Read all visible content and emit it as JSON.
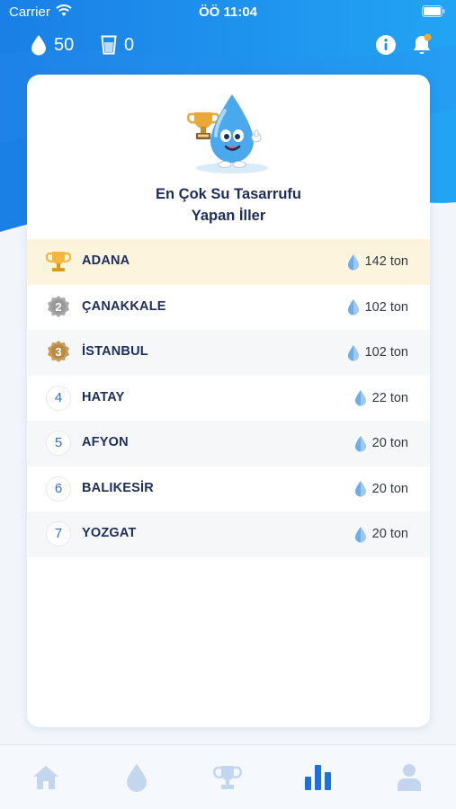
{
  "status_bar": {
    "carrier": "Carrier",
    "time": "ÖÖ 11:04"
  },
  "header": {
    "drop_count": "50",
    "cup_count": "0"
  },
  "card": {
    "title_line1": "En Çok Su Tasarrufu",
    "title_line2": "Yapan İller"
  },
  "ranking": [
    {
      "rank": "1",
      "city": "ADANA",
      "value": "142 ton",
      "badge": "trophy-gold"
    },
    {
      "rank": "2",
      "city": "ÇANAKKALE",
      "value": "102 ton",
      "badge": "medal-silver"
    },
    {
      "rank": "3",
      "city": "İSTANBUL",
      "value": "102 ton",
      "badge": "medal-bronze"
    },
    {
      "rank": "4",
      "city": "HATAY",
      "value": "22 ton",
      "badge": "number"
    },
    {
      "rank": "5",
      "city": "AFYON",
      "value": "20 ton",
      "badge": "number"
    },
    {
      "rank": "6",
      "city": "BALIKESİR",
      "value": "20 ton",
      "badge": "number"
    },
    {
      "rank": "7",
      "city": "YOZGAT",
      "value": "20 ton",
      "badge": "number"
    }
  ],
  "tabs": [
    "home-icon",
    "water-drop-icon",
    "trophy-icon",
    "bar-chart-icon",
    "profile-icon"
  ],
  "colors": {
    "brand_blue": "#1e8ff0",
    "active_tab": "#1e6fe0",
    "inactive_tab": "#c4d6ee",
    "title_navy": "#1d2d5c",
    "first_row_bg": "#fdf4dd"
  }
}
